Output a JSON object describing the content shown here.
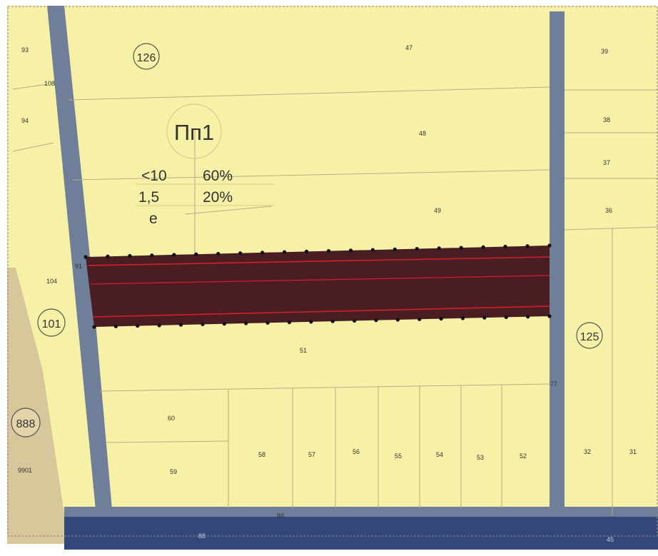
{
  "colors": {
    "parcel_fill": "#f6f1a6",
    "street_fill": "#6f7f99",
    "main_street_fill": "#34477a",
    "forest_fill": "#d8c79a",
    "highlight_fill": "#4a1d22",
    "highlight_line": "#d21f2b",
    "boundary_line": "#b9a98a"
  },
  "zone": {
    "code": "Пп1",
    "rows": [
      {
        "left": "<10",
        "right": "60%"
      },
      {
        "left": "1,5",
        "right": "20%"
      },
      {
        "left": "e",
        "right": ""
      }
    ]
  },
  "block_numbers": {
    "b126": "126",
    "b101": "101",
    "b125": "125",
    "b888": "888"
  },
  "parcel_numbers": {
    "p93": "93",
    "p94": "94",
    "p108": "108",
    "p104": "104",
    "p91": "91",
    "p9901": "9901",
    "p47": "47",
    "p48": "48",
    "p49": "49",
    "p51": "51",
    "p60": "60",
    "p59": "59",
    "p58": "58",
    "p57": "57",
    "p56": "56",
    "p55": "55",
    "p54": "54",
    "p53": "53",
    "p52": "52",
    "p39": "39",
    "p38": "38",
    "p37": "37",
    "p36": "36",
    "p32": "32",
    "p31": "31",
    "p77": "77",
    "p89": "89",
    "p88": "88",
    "p45": "45"
  }
}
